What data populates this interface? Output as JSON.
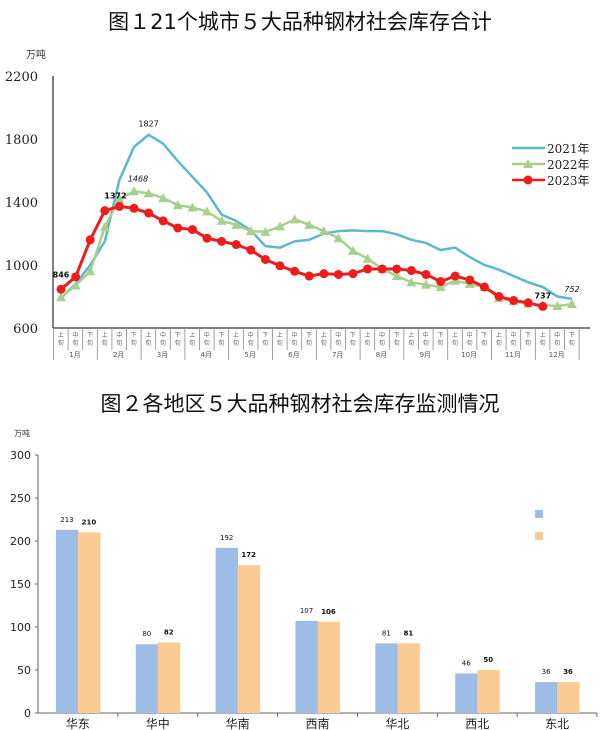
{
  "chart_data": [
    {
      "type": "line",
      "title": "图１21个城市５大品种钢材社会库存合计",
      "ylabel": "万吨",
      "ylim": [
        600,
        2200
      ],
      "yticks": [
        "600",
        "1000",
        "1400",
        "1800",
        "2200"
      ],
      "xticks": [
        "上旬",
        "中旬",
        "下旬"
      ],
      "months": [
        "1月",
        "2月",
        "3月",
        "4月",
        "5月",
        "6月",
        "7月",
        "8月",
        "9月",
        "10月",
        "11月",
        "12月"
      ],
      "legend_position": "right",
      "series": [
        {
          "name": "2021年",
          "color": "#5bb8cf",
          "marker": "none",
          "values": [
            790,
            880,
            1000,
            1150,
            1540,
            1750,
            1827,
            1770,
            1660,
            1560,
            1460,
            1320,
            1280,
            1220,
            1120,
            1110,
            1150,
            1160,
            1200,
            1215,
            1220,
            1215,
            1215,
            1195,
            1160,
            1140,
            1095,
            1110,
            1050,
            1000,
            970,
            930,
            890,
            860,
            800,
            785
          ]
        },
        {
          "name": "2022年",
          "color": "#a8d08d",
          "marker": "triangle",
          "values": [
            795,
            870,
            960,
            1240,
            1420,
            1468,
            1455,
            1425,
            1380,
            1365,
            1340,
            1280,
            1255,
            1215,
            1210,
            1245,
            1290,
            1255,
            1215,
            1170,
            1090,
            1040,
            975,
            930,
            890,
            875,
            860,
            900,
            880,
            860,
            790,
            770,
            755,
            745,
            740,
            752
          ]
        },
        {
          "name": "2023年",
          "color": "#ee1c1c",
          "marker": "circle",
          "values": [
            846,
            925,
            1160,
            1345,
            1372,
            1360,
            1330,
            1280,
            1235,
            1225,
            1170,
            1150,
            1130,
            1095,
            1035,
            995,
            960,
            930,
            945,
            940,
            945,
            975,
            975,
            975,
            965,
            940,
            895,
            930,
            905,
            860,
            800,
            775,
            760,
            737
          ]
        }
      ],
      "annotations": [
        {
          "text": "846",
          "series": "2023年",
          "index": 0
        },
        {
          "text": "1372",
          "series": "2023年",
          "index": 4
        },
        {
          "text": "1827",
          "series": "2021年",
          "index": 6
        },
        {
          "text": "1468",
          "series": "2022年",
          "index": 5
        },
        {
          "text": "737",
          "series": "2023年",
          "index": 33
        },
        {
          "text": "752",
          "series": "2022年",
          "index": 35
        }
      ]
    },
    {
      "type": "bar",
      "title": "图２各地区５大品种钢材社会库存监测情况",
      "ylabel": "万吨",
      "ylim": [
        0,
        300
      ],
      "yticks": [
        "0",
        "50",
        "100",
        "150",
        "200",
        "250",
        "300"
      ],
      "categories": [
        "华东",
        "华中",
        "华南",
        "西南",
        "华北",
        "西北",
        "东北"
      ],
      "legend_position": "right",
      "series": [
        {
          "name": "",
          "color": "#9dbde6",
          "values": [
            213,
            80,
            192,
            107,
            81,
            46,
            36
          ]
        },
        {
          "name": "",
          "color": "#fbcb94",
          "values": [
            210,
            82,
            172,
            106,
            81,
            50,
            36
          ]
        }
      ]
    }
  ]
}
